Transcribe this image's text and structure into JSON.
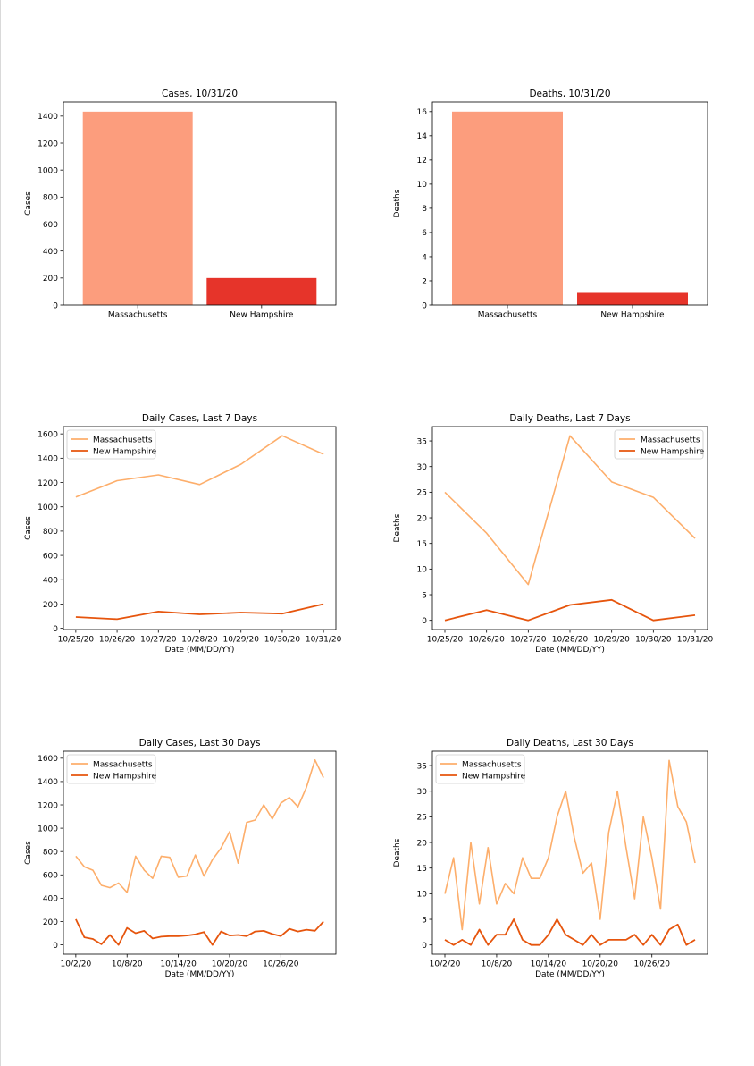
{
  "colors": {
    "ma_bar": "#fc9d7d",
    "nh_bar": "#e6342a",
    "ma_line": "#fdae6b",
    "nh_line": "#e6550d"
  },
  "chart_data": [
    {
      "id": "cases-total",
      "type": "bar",
      "title": "Cases, 10/31/20",
      "xlabel": "",
      "ylabel": "Cases",
      "categories": [
        "Massachusetts",
        "New Hampshire"
      ],
      "values": [
        1433,
        200
      ],
      "ylim": [
        0,
        1505
      ],
      "yticks": [
        0,
        200,
        400,
        600,
        800,
        1000,
        1200,
        1400
      ]
    },
    {
      "id": "deaths-total",
      "type": "bar",
      "title": "Deaths, 10/31/20",
      "xlabel": "",
      "ylabel": "Deaths",
      "categories": [
        "Massachusetts",
        "New Hampshire"
      ],
      "values": [
        16,
        1
      ],
      "ylim": [
        0,
        16.8
      ],
      "yticks": [
        0,
        2,
        4,
        6,
        8,
        10,
        12,
        14,
        16
      ]
    },
    {
      "id": "cases-7",
      "type": "line",
      "title": "Daily Cases, Last 7 Days",
      "xlabel": "Date (MM/DD/YY)",
      "ylabel": "Cases",
      "x": [
        "10/25/20",
        "10/26/20",
        "10/27/20",
        "10/28/20",
        "10/29/20",
        "10/30/20",
        "10/31/20"
      ],
      "xticks": [
        "10/25/20",
        "10/26/20",
        "10/27/20",
        "10/28/20",
        "10/29/20",
        "10/30/20",
        "10/31/20"
      ],
      "ylim": [
        -10,
        1660
      ],
      "yticks": [
        0,
        200,
        400,
        600,
        800,
        1000,
        1200,
        1400,
        1600
      ],
      "legend": "upper left",
      "series": [
        {
          "name": "Massachusetts",
          "values": [
            1080,
            1215,
            1263,
            1183,
            1350,
            1585,
            1433
          ]
        },
        {
          "name": "New Hampshire",
          "values": [
            93,
            75,
            138,
            115,
            130,
            121,
            200
          ]
        }
      ]
    },
    {
      "id": "deaths-7",
      "type": "line",
      "title": "Daily Deaths, Last 7 Days",
      "xlabel": "Date (MM/DD/YY)",
      "ylabel": "Deaths",
      "x": [
        "10/25/20",
        "10/26/20",
        "10/27/20",
        "10/28/20",
        "10/29/20",
        "10/30/20",
        "10/31/20"
      ],
      "xticks": [
        "10/25/20",
        "10/26/20",
        "10/27/20",
        "10/28/20",
        "10/29/20",
        "10/30/20",
        "10/31/20"
      ],
      "ylim": [
        -1.8,
        37.8
      ],
      "yticks": [
        0,
        5,
        10,
        15,
        20,
        25,
        30,
        35
      ],
      "legend": "upper right",
      "series": [
        {
          "name": "Massachusetts",
          "values": [
            25,
            17,
            7,
            36,
            27,
            24,
            16
          ]
        },
        {
          "name": "New Hampshire",
          "values": [
            0,
            2,
            0,
            3,
            4,
            0,
            1
          ]
        }
      ]
    },
    {
      "id": "cases-30",
      "type": "line",
      "title": "Daily Cases, Last 30 Days",
      "xlabel": "Date (MM/DD/YY)",
      "ylabel": "Cases",
      "x": [
        "10/2/20",
        "10/3/20",
        "10/4/20",
        "10/5/20",
        "10/6/20",
        "10/7/20",
        "10/8/20",
        "10/9/20",
        "10/10/20",
        "10/11/20",
        "10/12/20",
        "10/13/20",
        "10/14/20",
        "10/15/20",
        "10/16/20",
        "10/17/20",
        "10/18/20",
        "10/19/20",
        "10/20/20",
        "10/21/20",
        "10/22/20",
        "10/23/20",
        "10/24/20",
        "10/25/20",
        "10/26/20",
        "10/27/20",
        "10/28/20",
        "10/29/20",
        "10/30/20",
        "10/31/20"
      ],
      "xticks": [
        "10/2/20",
        "10/8/20",
        "10/14/20",
        "10/20/20",
        "10/26/20"
      ],
      "ylim": [
        -80,
        1660
      ],
      "yticks": [
        0,
        200,
        400,
        600,
        800,
        1000,
        1200,
        1400,
        1600
      ],
      "legend": "upper left",
      "series": [
        {
          "name": "Massachusetts",
          "values": [
            760,
            670,
            640,
            510,
            490,
            530,
            450,
            760,
            640,
            570,
            760,
            750,
            580,
            590,
            770,
            590,
            730,
            830,
            970,
            700,
            1050,
            1070,
            1200,
            1080,
            1215,
            1263,
            1183,
            1350,
            1585,
            1433
          ]
        },
        {
          "name": "New Hampshire",
          "values": [
            220,
            65,
            50,
            5,
            85,
            0,
            145,
            100,
            120,
            55,
            70,
            75,
            75,
            80,
            90,
            110,
            0,
            115,
            80,
            85,
            75,
            115,
            120,
            93,
            75,
            138,
            115,
            130,
            121,
            200
          ]
        }
      ]
    },
    {
      "id": "deaths-30",
      "type": "line",
      "title": "Daily Deaths, Last 30 Days",
      "xlabel": "Date (MM/DD/YY)",
      "ylabel": "Deaths",
      "x": [
        "10/2/20",
        "10/3/20",
        "10/4/20",
        "10/5/20",
        "10/6/20",
        "10/7/20",
        "10/8/20",
        "10/9/20",
        "10/10/20",
        "10/11/20",
        "10/12/20",
        "10/13/20",
        "10/14/20",
        "10/15/20",
        "10/16/20",
        "10/17/20",
        "10/18/20",
        "10/19/20",
        "10/20/20",
        "10/21/20",
        "10/22/20",
        "10/23/20",
        "10/24/20",
        "10/25/20",
        "10/26/20",
        "10/27/20",
        "10/28/20",
        "10/29/20",
        "10/30/20",
        "10/31/20"
      ],
      "xticks": [
        "10/2/20",
        "10/8/20",
        "10/14/20",
        "10/20/20",
        "10/26/20"
      ],
      "ylim": [
        -1.8,
        37.8
      ],
      "yticks": [
        0,
        5,
        10,
        15,
        20,
        25,
        30,
        35
      ],
      "legend": "upper left",
      "series": [
        {
          "name": "Massachusetts",
          "values": [
            10,
            17,
            3,
            20,
            8,
            19,
            8,
            12,
            10,
            17,
            13,
            13,
            17,
            25,
            30,
            21,
            14,
            16,
            5,
            22,
            30,
            19,
            9,
            25,
            17,
            7,
            36,
            27,
            24,
            16
          ]
        },
        {
          "name": "New Hampshire",
          "values": [
            1,
            0,
            1,
            0,
            3,
            0,
            2,
            2,
            5,
            1,
            0,
            0,
            2,
            5,
            2,
            1,
            0,
            2,
            0,
            1,
            1,
            1,
            2,
            0,
            2,
            0,
            3,
            4,
            0,
            1
          ]
        }
      ]
    }
  ]
}
